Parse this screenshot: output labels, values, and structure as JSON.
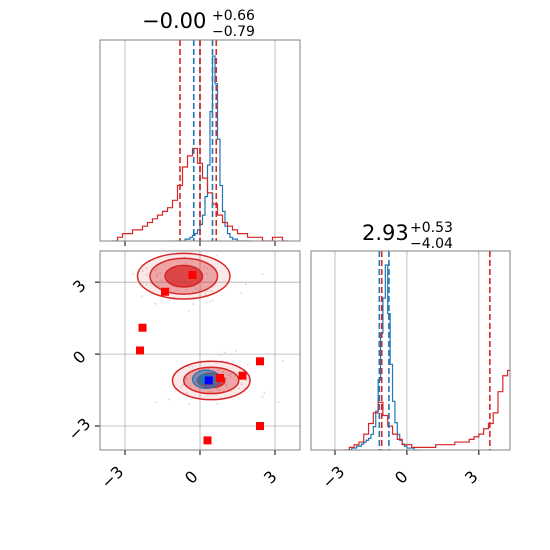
{
  "chart_data": {
    "type": "corner",
    "colors": {
      "blue": "#1f77b4",
      "red": "#d62728",
      "marker_blue": "#0000ff",
      "marker_red": "#ff0000",
      "grid": "#b0b0b0",
      "axis": "#808080"
    },
    "grid": true,
    "params": [
      {
        "title_value": "−0.00",
        "title_plus": "+0.66",
        "title_minus": "−0.79",
        "range": [
          -4.0,
          4.0
        ]
      },
      {
        "title_value": "2.93",
        "title_plus": "+0.53",
        "title_minus": "−4.04",
        "range": [
          -4.0,
          4.3
        ]
      }
    ],
    "ticks": [
      -3,
      0,
      3
    ],
    "tick_labels": [
      "−3",
      "0",
      "3"
    ],
    "marginal_1": {
      "blue_quantile_lines": [
        -0.25,
        0.0,
        0.5
      ],
      "red_quantile_lines": [
        -0.8,
        0.0,
        0.65
      ],
      "blue_hist": {
        "bin_start": -1.0,
        "bin_width": 0.1,
        "counts": [
          0,
          0,
          0,
          0,
          1,
          1,
          2,
          3,
          4,
          6,
          9,
          14,
          24,
          41,
          70,
          100,
          85,
          55,
          30,
          16,
          8,
          4,
          2,
          1,
          1,
          0,
          0,
          0,
          0,
          0
        ]
      },
      "red_hist": {
        "bin_start": -3.5,
        "bin_width": 0.2,
        "counts": [
          0,
          1,
          2,
          2,
          3,
          3,
          4,
          5,
          6,
          7,
          8,
          9,
          11,
          15,
          20,
          23,
          25,
          21,
          17,
          13,
          10,
          7,
          5,
          4,
          3,
          2,
          2,
          1,
          1,
          1,
          0,
          0,
          1,
          1,
          0
        ]
      }
    },
    "marginal_2": {
      "blue_quantile_lines": [
        -1.15,
        -0.75
      ],
      "red_quantile_lines": [
        -1.05,
        3.46
      ],
      "blue_hist": {
        "bin_start": -2.5,
        "bin_width": 0.1,
        "counts": [
          0,
          0,
          1,
          1,
          2,
          2,
          3,
          4,
          5,
          6,
          8,
          12,
          20,
          36,
          60,
          78,
          95,
          70,
          44,
          25,
          14,
          8,
          5,
          3,
          2,
          1,
          1,
          1,
          0,
          0
        ]
      },
      "red_hist": {
        "bin_start": -2.6,
        "bin_width": 0.2,
        "counts": [
          0,
          1,
          2,
          3,
          6,
          10,
          14,
          18,
          13,
          9,
          6,
          4,
          2,
          2,
          1,
          1,
          1,
          1,
          1,
          2,
          2,
          2,
          2,
          3,
          3,
          3,
          4,
          5,
          6,
          8,
          10,
          14,
          22,
          28,
          30,
          25,
          16,
          10,
          5,
          2,
          1
        ]
      }
    },
    "joint": {
      "red_markers": [
        [
          -0.3,
          3.3
        ],
        [
          -1.4,
          2.6
        ],
        [
          -2.3,
          1.1
        ],
        [
          -2.4,
          0.15
        ],
        [
          0.3,
          -3.6
        ],
        [
          2.4,
          -3.0
        ],
        [
          2.4,
          -0.3
        ],
        [
          1.7,
          -0.9
        ],
        [
          0.8,
          -1.0
        ]
      ],
      "blue_markers": [
        [
          0.35,
          -1.1
        ]
      ],
      "red_clusters": [
        {
          "center": [
            -0.65,
            3.25
          ],
          "radii": [
            [
              0.75,
              0.45
            ],
            [
              1.35,
              0.75
            ],
            [
              1.85,
              0.95
            ]
          ]
        },
        {
          "center": [
            0.45,
            -1.1
          ],
          "radii": [
            [
              0.55,
              0.3
            ],
            [
              1.1,
              0.55
            ],
            [
              1.55,
              0.8
            ]
          ]
        }
      ],
      "blue_cluster": {
        "center": [
          0.25,
          -1.05
        ],
        "radii": [
          [
            0.3,
            0.2
          ],
          [
            0.55,
            0.38
          ]
        ]
      }
    }
  }
}
